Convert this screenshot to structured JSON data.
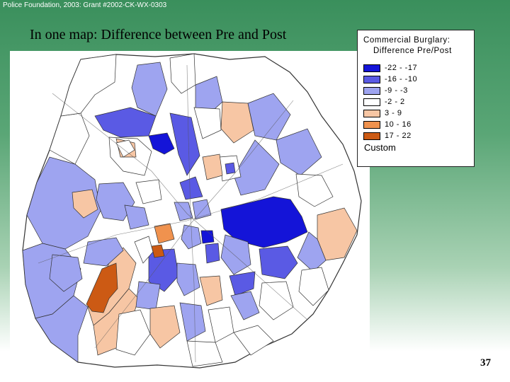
{
  "slide": {
    "header_note": "Police Foundation, 2003: Grant #2002-CK-WX-0303",
    "title": "In one map: Difference between Pre and Post",
    "page_number": "37"
  },
  "legend": {
    "title_line1": "Commercial Burglary:",
    "title_line2": "Difference Pre/Post",
    "footer": "Custom",
    "classes": [
      {
        "label": "-22 - -17",
        "color": "#1414d8"
      },
      {
        "label": "-16 - -10",
        "color": "#5a5ae4"
      },
      {
        "label": "-9 - -3",
        "color": "#9ea4f0"
      },
      {
        "label": "-2 - 2",
        "color": "#ffffff"
      },
      {
        "label": "3 - 9",
        "color": "#f7c6a4"
      },
      {
        "label": "10 - 16",
        "color": "#f0924e"
      },
      {
        "label": "17 - 22",
        "color": "#cc5a14"
      }
    ]
  }
}
